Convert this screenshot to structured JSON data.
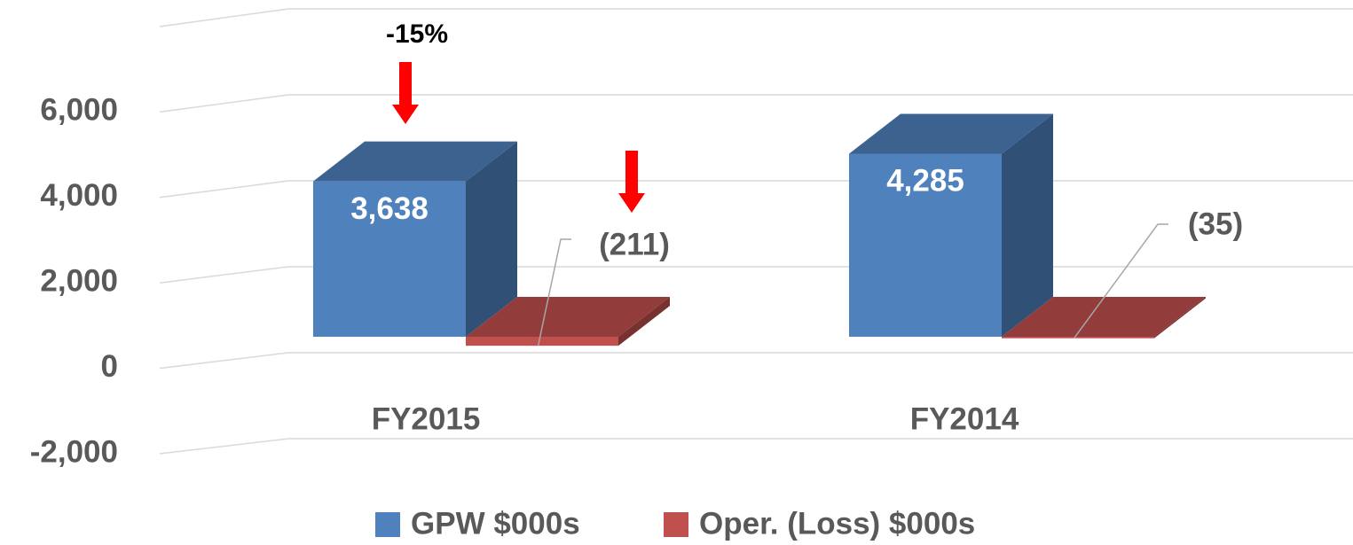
{
  "chart_data": {
    "type": "bar3d",
    "categories": [
      "FY2015",
      "FY2014"
    ],
    "series": [
      {
        "name": "GPW $000s",
        "color": "#4f81bd",
        "values": [
          3638,
          4285
        ],
        "value_labels": [
          "3,638",
          "4,285"
        ]
      },
      {
        "name": "Oper. (Loss) $000s",
        "color": "#c0504d",
        "values": [
          -211,
          -35
        ],
        "value_labels": [
          "(211)",
          "(35)"
        ]
      }
    ],
    "ylim": [
      -2000,
      8000
    ],
    "yticks": [
      {
        "value": -2000,
        "label": "-2,000"
      },
      0,
      {
        "value": 2000,
        "label": "2,000"
      },
      {
        "value": 4000,
        "label": "4,000"
      },
      {
        "value": 6000,
        "label": "6,000"
      }
    ],
    "annotations": [
      "-15%"
    ],
    "grid": true,
    "legend": "bottom"
  }
}
